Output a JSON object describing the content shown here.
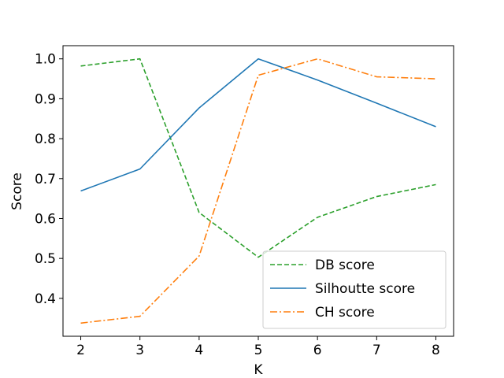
{
  "chart_data": {
    "type": "line",
    "title": "",
    "xlabel": "K",
    "ylabel": "Score",
    "x": [
      2,
      3,
      4,
      5,
      6,
      7,
      8
    ],
    "xlim": [
      1.7,
      8.3
    ],
    "ylim": [
      0.305,
      1.033
    ],
    "xticks": [
      "2",
      "3",
      "4",
      "5",
      "6",
      "7",
      "8"
    ],
    "yticks": [
      "0.4",
      "0.5",
      "0.6",
      "0.7",
      "0.8",
      "0.9",
      "1.0"
    ],
    "grid": false,
    "legend_position": "lower-right",
    "series": [
      {
        "name": "DB score",
        "values": [
          0.982,
          1.0,
          0.615,
          0.503,
          0.603,
          0.655,
          0.685
        ],
        "color": "#2ca02c",
        "linestyle": "dashed"
      },
      {
        "name": "Silhoutte score",
        "values": [
          0.669,
          0.724,
          0.877,
          1.0,
          0.947,
          0.889,
          0.83
        ],
        "color": "#1f77b4",
        "linestyle": "solid"
      },
      {
        "name": "CH score",
        "values": [
          0.338,
          0.355,
          0.506,
          0.959,
          1.0,
          0.955,
          0.95
        ],
        "color": "#ff7f0e",
        "linestyle": "dashdot"
      }
    ]
  }
}
